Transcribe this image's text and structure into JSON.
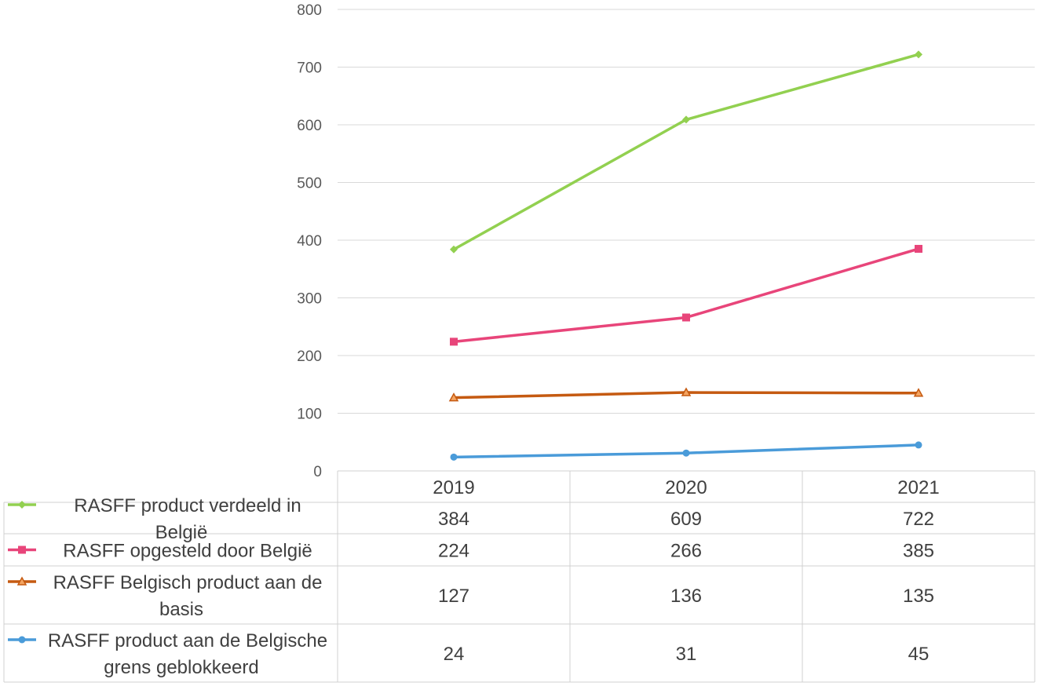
{
  "chart_data": {
    "type": "line",
    "title": "",
    "xlabel": "",
    "ylabel": "",
    "ylim": [
      0,
      800
    ],
    "yticks": [
      0,
      100,
      200,
      300,
      400,
      500,
      600,
      700,
      800
    ],
    "grid": true,
    "legend": "data-table",
    "categories": [
      "2019",
      "2020",
      "2021"
    ],
    "series": [
      {
        "name": "RASFF product verdeeld in België",
        "values": [
          384,
          609,
          722
        ],
        "color": "#92D050",
        "marker": "diamond"
      },
      {
        "name": "RASFF opgesteld door België",
        "values": [
          224,
          266,
          385
        ],
        "color": "#E8457A",
        "marker": "square"
      },
      {
        "name": "RASFF Belgisch product aan de basis",
        "values": [
          127,
          136,
          135
        ],
        "color": "#C55A11",
        "marker": "triangle"
      },
      {
        "name": "RASFF product aan de Belgische grens geblokkeerd",
        "values": [
          24,
          31,
          45
        ],
        "color": "#4A9BD9",
        "marker": "circle"
      }
    ]
  }
}
